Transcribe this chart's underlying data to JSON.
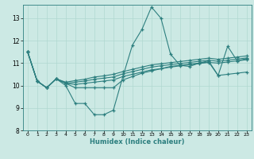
{
  "title": "",
  "xlabel": "Humidex (Indice chaleur)",
  "ylabel": "",
  "background_color": "#cce9e4",
  "line_color": "#2d7f7f",
  "grid_color": "#b0d8d0",
  "xlim": [
    -0.5,
    23.5
  ],
  "ylim": [
    8.0,
    13.6
  ],
  "yticks": [
    8,
    9,
    10,
    11,
    12,
    13
  ],
  "xticks": [
    0,
    1,
    2,
    3,
    4,
    5,
    6,
    7,
    8,
    9,
    10,
    11,
    12,
    13,
    14,
    15,
    16,
    17,
    18,
    19,
    20,
    21,
    22,
    23
  ],
  "series": [
    [
      11.5,
      10.2,
      9.9,
      10.3,
      10.0,
      9.2,
      9.2,
      8.7,
      8.7,
      8.9,
      10.4,
      11.8,
      12.5,
      13.5,
      13.0,
      11.4,
      10.9,
      10.85,
      11.0,
      11.1,
      10.45,
      11.75,
      11.1,
      11.2
    ],
    [
      11.5,
      10.2,
      9.9,
      10.3,
      10.1,
      9.9,
      9.9,
      9.9,
      9.9,
      9.9,
      10.25,
      10.4,
      10.55,
      10.65,
      10.75,
      10.85,
      10.9,
      10.95,
      11.0,
      11.05,
      10.45,
      10.5,
      10.55,
      10.6
    ],
    [
      11.5,
      10.2,
      9.9,
      10.3,
      10.1,
      10.05,
      10.1,
      10.15,
      10.2,
      10.25,
      10.4,
      10.5,
      10.6,
      10.7,
      10.75,
      10.82,
      10.88,
      10.93,
      10.98,
      11.03,
      11.0,
      11.05,
      11.1,
      11.15
    ],
    [
      11.5,
      10.2,
      9.9,
      10.3,
      10.1,
      10.15,
      10.2,
      10.28,
      10.33,
      10.38,
      10.52,
      10.62,
      10.72,
      10.82,
      10.88,
      10.93,
      10.98,
      11.03,
      11.08,
      11.13,
      11.08,
      11.13,
      11.18,
      11.23
    ],
    [
      11.5,
      10.2,
      9.9,
      10.3,
      10.15,
      10.22,
      10.28,
      10.38,
      10.43,
      10.5,
      10.62,
      10.72,
      10.82,
      10.92,
      10.97,
      11.02,
      11.07,
      11.12,
      11.17,
      11.22,
      11.17,
      11.22,
      11.27,
      11.32
    ]
  ]
}
